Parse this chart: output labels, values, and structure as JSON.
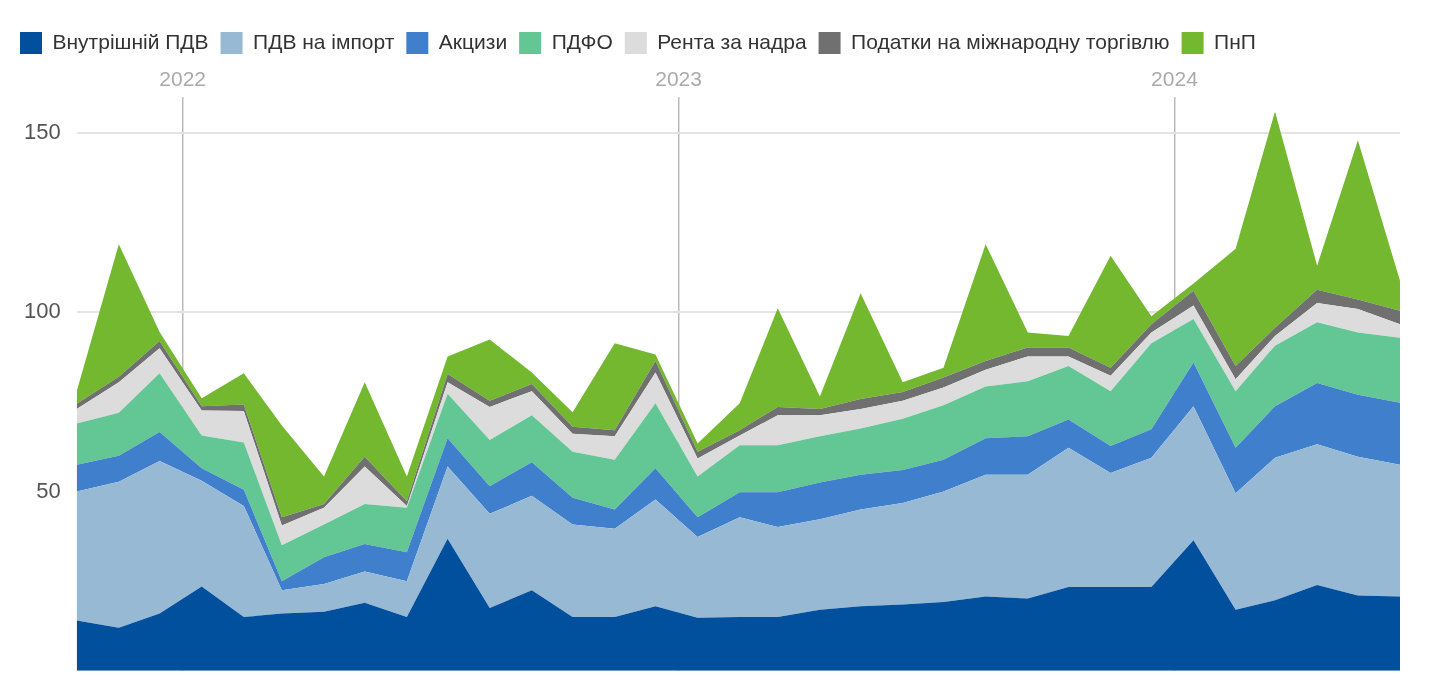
{
  "chart_data": {
    "type": "area",
    "stacked": true,
    "legend": "top left",
    "grid": true,
    "x": [
      "2021-10-15",
      "2021-11-15",
      "2021-12-15",
      "2022-01-15",
      "2022-02-15",
      "2022-03-15",
      "2022-04-15",
      "2022-05-15",
      "2022-06-15",
      "2022-07-15",
      "2022-08-15",
      "2022-09-15",
      "2022-10-15",
      "2022-11-15",
      "2022-12-15",
      "2023-01-15",
      "2023-02-15",
      "2023-03-15",
      "2023-04-15",
      "2023-05-15",
      "2023-06-15",
      "2023-07-15",
      "2023-08-15",
      "2023-09-15",
      "2023-10-15",
      "2023-11-15",
      "2023-12-15",
      "2024-01-15",
      "2024-02-15",
      "2024-03-15",
      "2024-04-15",
      "2024-05-15",
      "2024-06-15"
    ],
    "xlim": [
      "2021-10-15",
      "2024-06-15"
    ],
    "xticks": [
      {
        "value": "2022-01-01",
        "label": "2022"
      },
      {
        "value": "2023-01-01",
        "label": "2023"
      },
      {
        "value": "2024-01-01",
        "label": "2024"
      }
    ],
    "ylim": [
      0,
      160
    ],
    "yticks": [
      50,
      100,
      150
    ],
    "series": [
      {
        "name": "Внутрішній ПДВ",
        "color": "#00509e",
        "values": [
          14,
          12,
          16,
          23.5,
          15,
          16,
          16.5,
          19,
          15,
          36.8,
          17.5,
          22.5,
          15,
          15,
          18,
          14.8,
          15,
          15,
          17,
          18,
          18.5,
          19.2,
          20.7,
          20.2,
          23.4,
          23.4,
          23.4,
          36.4,
          17,
          19.7,
          23.9,
          21,
          20.7
        ]
      },
      {
        "name": "ПДВ на імпорт",
        "color": "#97b9d3",
        "values": [
          36,
          40.7,
          42.5,
          29.5,
          31,
          6.5,
          7.7,
          8.7,
          10,
          20.2,
          26.3,
          26.3,
          25.8,
          24.6,
          29.8,
          22.5,
          27.8,
          25.1,
          25.3,
          27,
          28.3,
          30.8,
          34,
          34.5,
          38.8,
          31.8,
          36,
          37.4,
          32.5,
          39.7,
          39.3,
          38.7,
          36.8
        ]
      },
      {
        "name": "Акцизи",
        "color": "#3f7fcb",
        "values": [
          7.5,
          7.3,
          8.1,
          3.5,
          4.5,
          2.5,
          7.5,
          7.7,
          8.1,
          7.9,
          7.7,
          9.4,
          7.5,
          5.4,
          8.7,
          5.5,
          7,
          9.7,
          10.2,
          9.7,
          9.2,
          8.9,
          10.2,
          10.7,
          7.9,
          7.5,
          8,
          12.2,
          12.7,
          14.4,
          17.1,
          17.3,
          17.3
        ]
      },
      {
        "name": "ПДФО",
        "color": "#63c795",
        "values": [
          11.5,
          12,
          16.4,
          9.1,
          13.2,
          10,
          9.1,
          11.1,
          12.4,
          12.4,
          12.9,
          13.1,
          12.8,
          13.9,
          18.1,
          11.4,
          13.1,
          13.1,
          12.9,
          12.9,
          14.3,
          15.2,
          14.4,
          15.4,
          14.9,
          15.3,
          24,
          12.1,
          15.8,
          16.9,
          16.9,
          17.4,
          18.1
        ]
      },
      {
        "name": "Рента за надра",
        "color": "#dcdcdc",
        "values": [
          4,
          8.5,
          7,
          7,
          8.8,
          5.5,
          4.7,
          10.5,
          0.5,
          3.2,
          9.2,
          6.7,
          5,
          6.5,
          8.6,
          5,
          2.7,
          8.4,
          5.9,
          5.4,
          5,
          4.9,
          4.7,
          6.9,
          2.7,
          4.3,
          3,
          3.8,
          3.3,
          2.7,
          5.4,
          6.5,
          3.8
        ]
      },
      {
        "name": "Податки на міжнародну торгівлю",
        "color": "#707070",
        "values": [
          1.5,
          1.5,
          2,
          1.2,
          1.8,
          2.3,
          1,
          2.7,
          1.3,
          2.3,
          1.7,
          2,
          2,
          1.7,
          3.2,
          1.9,
          1.5,
          2.3,
          1.7,
          2.8,
          2.5,
          2.8,
          2.4,
          2.5,
          2.5,
          2.2,
          2.3,
          4.1,
          3.7,
          2.3,
          3.7,
          2.7,
          3.7
        ]
      },
      {
        "name": "ПнП",
        "color": "#74b830",
        "values": [
          3.5,
          37,
          2.5,
          2.2,
          8.7,
          25.6,
          7.7,
          20.8,
          6.9,
          4.9,
          17.1,
          3.2,
          4,
          24.3,
          1.8,
          2.3,
          7.5,
          27.5,
          3.5,
          29.5,
          2.7,
          2.7,
          32.6,
          4.2,
          3.2,
          31.3,
          2.2,
          2,
          32.7,
          60.3,
          6.7,
          44.4,
          8.4
        ]
      }
    ]
  }
}
